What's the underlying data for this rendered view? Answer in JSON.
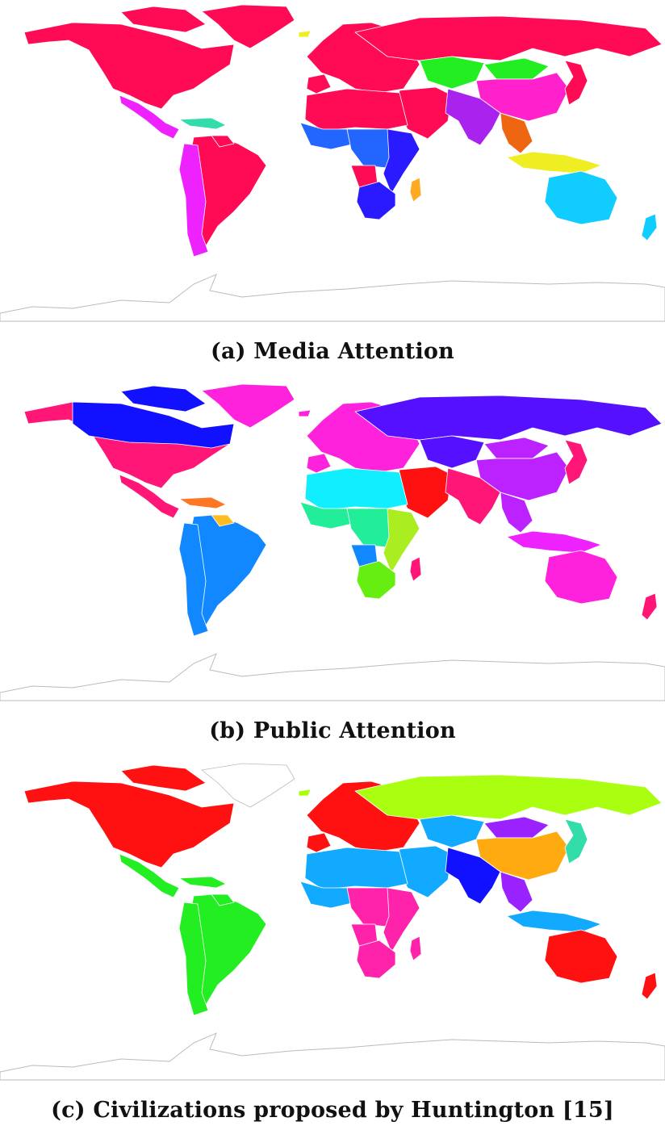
{
  "panels": [
    {
      "caption": "(a) Media Attention",
      "colors": {
        "north_america": "#ff0a55",
        "greenland": "#ff0a55",
        "canada_islands": "#ff0a55",
        "central_america": "#ee22ff",
        "caribbean": "#33ddaa",
        "south_america": "#ff0a55",
        "south_america_west": "#ee22ff",
        "guyana": "#ff0a55",
        "europe": "#ff0a55",
        "iberia": "#ff0a55",
        "russia": "#ff0a55",
        "kazakhstan": "#22ee22",
        "north_africa": "#ff0a55",
        "west_africa": "#2266ff",
        "central_africa": "#2266ff",
        "east_africa": "#2a1aff",
        "southern_africa": "#2a1aff",
        "angola": "#ff0a55",
        "madagascar": "#ffaa22",
        "middle_east": "#ff0a55",
        "south_asia": "#aa22ee",
        "china": "#ff22cc",
        "mongolia": "#22ee22",
        "southeast_asia": "#ee6611",
        "indonesia": "#eeee22",
        "japan": "#ff0a55",
        "australia": "#11ccff",
        "new_zealand": "#11ccff",
        "svalbard": "#eeee22",
        "antarctica": "#ffffff"
      }
    },
    {
      "caption": "(b) Public Attention",
      "colors": {
        "north_america": "#ff1677",
        "greenland": "#ff22dd",
        "canada_islands": "#1111ff",
        "canada": "#1111ff",
        "central_america": "#ff1677",
        "caribbean": "#ff7722",
        "south_america": "#1188ff",
        "south_america_west": "#1188ff",
        "guyana": "#ffbb22",
        "europe": "#ff22dd",
        "iberia": "#ff22dd",
        "russia": "#5511ff",
        "kazakhstan": "#5511ff",
        "north_africa": "#11eeff",
        "west_africa": "#22ee99",
        "central_africa": "#22ee99",
        "east_africa": "#aaee22",
        "southern_africa": "#66ee11",
        "angola": "#1188ff",
        "madagascar": "#ff1677",
        "middle_east": "#ff1111",
        "south_asia": "#ff1677",
        "china": "#bb22ff",
        "mongolia": "#bb22ff",
        "southeast_asia": "#bb22ff",
        "indonesia": "#ee22ff",
        "japan": "#ff1677",
        "australia": "#ff22dd",
        "new_zealand": "#ff1677",
        "svalbard": "#ff22dd",
        "antarctica": "#ffffff"
      }
    },
    {
      "caption": "(c) Civilizations proposed by Huntington [15]",
      "colors": {
        "north_america": "#ff1111",
        "greenland": "#ffffff",
        "canada_islands": "#ff1111",
        "central_america": "#22ee22",
        "caribbean": "#22ee22",
        "south_america": "#22ee22",
        "south_america_west": "#22ee22",
        "guyana": "#22ee22",
        "europe": "#ff1111",
        "iberia": "#ff1111",
        "russia": "#aaff11",
        "kazakhstan": "#11aaff",
        "north_africa": "#11aaff",
        "west_africa": "#11aaff",
        "central_africa": "#ff22aa",
        "east_africa": "#ff22aa",
        "southern_africa": "#ff22aa",
        "angola": "#ff22aa",
        "madagascar": "#ff22aa",
        "middle_east": "#11aaff",
        "south_asia": "#1111ff",
        "china": "#ffaa11",
        "mongolia": "#9922ff",
        "southeast_asia": "#9922ff",
        "indonesia": "#11aaff",
        "japan": "#33ddaa",
        "australia": "#ff1111",
        "new_zealand": "#ff1111",
        "svalbard": "#aaff11",
        "antarctica": "#ffffff"
      }
    }
  ]
}
